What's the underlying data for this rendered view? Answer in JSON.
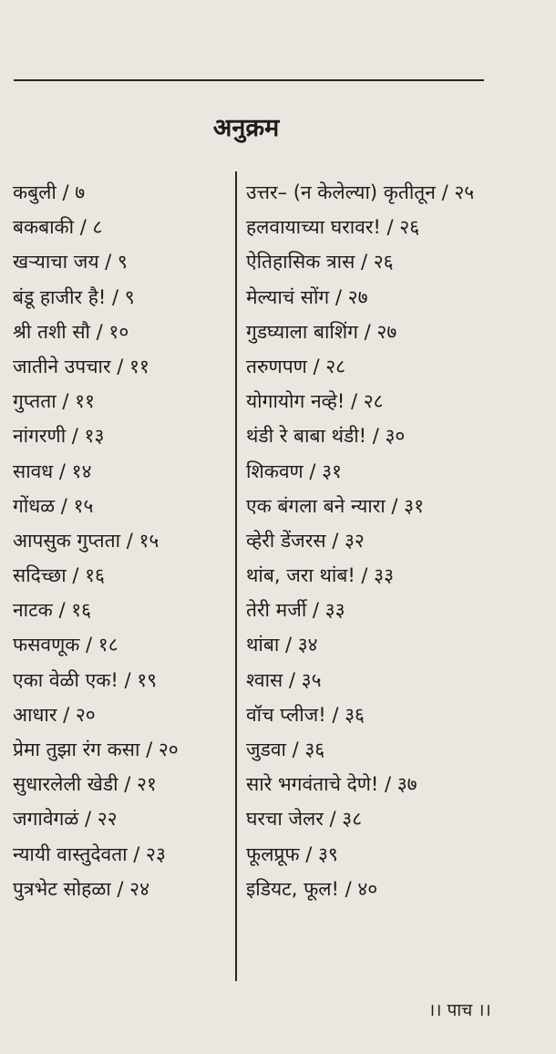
{
  "title": "अनुक्रम",
  "left_entries": [
    "कबुली / ७",
    "बकबाकी / ८",
    "खऱ्याचा जय / ९",
    "बंडू हाजीर है! / ९",
    "श्री तशी सौ / १०",
    "जातीने उपचार / ११",
    "गुप्तता / ११",
    "नांगरणी / १३",
    "सावध / १४",
    "गोंधळ / १५",
    "आपसुक गुप्तता / १५",
    "सदिच्छा / १६",
    "नाटक / १६",
    "फसवणूक / १८",
    "एका वेळी एक! / १९",
    "आधार / २०",
    "प्रेमा तुझा रंग कसा / २०",
    "सुधारलेली खेडी / २१",
    "जगावेगळं / २२",
    "न्यायी वास्तुदेवता / २३",
    "पुत्रभेट सोहळा / २४"
  ],
  "right_entries": [
    "उत्तर– (न केलेल्या) कृतीतून / २५",
    "हलवायाच्या घरावर! / २६",
    "ऐतिहासिक त्रास / २६",
    "मेल्याचं सोंग / २७",
    "गुडघ्याला बाशिंग / २७",
    "तरुणपण / २८",
    "योगायोग नव्हे! / २८",
    "थंडी रे बाबा थंडी! / ३०",
    "शिकवण / ३१",
    "एक बंगला बने न्यारा / ३१",
    "व्हेरी डेंजरस / ३२",
    "थांब, जरा थांब! / ३३",
    "तेरी मर्जी / ३३",
    "थांबा / ३४",
    "श्वास / ३५",
    "वॉच प्लीज! / ३६",
    "जुडवा / ३६",
    "सारे भगवंताचे देणे! / ३७",
    "घरचा जेलर / ३८",
    "फूलप्रूफ / ३९",
    "इडियट, फूल! / ४०"
  ],
  "footer": "।। पाच ।।"
}
